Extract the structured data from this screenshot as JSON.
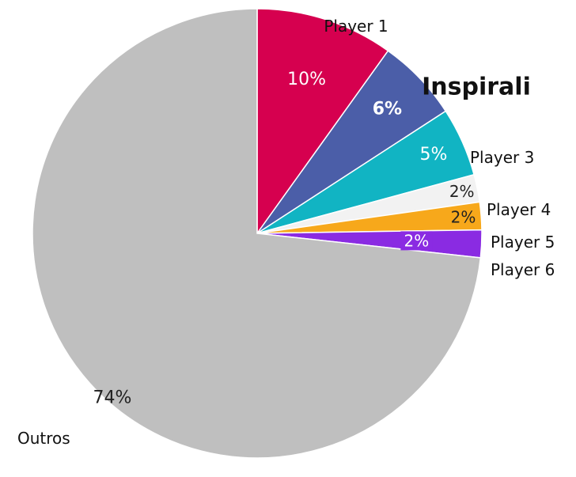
{
  "chart_data": {
    "type": "pie",
    "categories": [
      "Player 1",
      "Inspirali",
      "Player 3",
      "Player 4",
      "Player 5",
      "Player 6",
      "Outros"
    ],
    "values": [
      10,
      6,
      5,
      2,
      2,
      2,
      74
    ],
    "value_labels": [
      "10%",
      "6%",
      "5%",
      "2%",
      "2%",
      "2%",
      "74%"
    ],
    "colors": [
      "#d6004f",
      "#4b5ea8",
      "#11b4c3",
      "#f2f2f2",
      "#f7a81b",
      "#8a2be2",
      "#bfbfbf"
    ],
    "start_angle_deg": 0,
    "direction": "clockwise",
    "legend": "none",
    "highlighted_category": "Inspirali"
  }
}
